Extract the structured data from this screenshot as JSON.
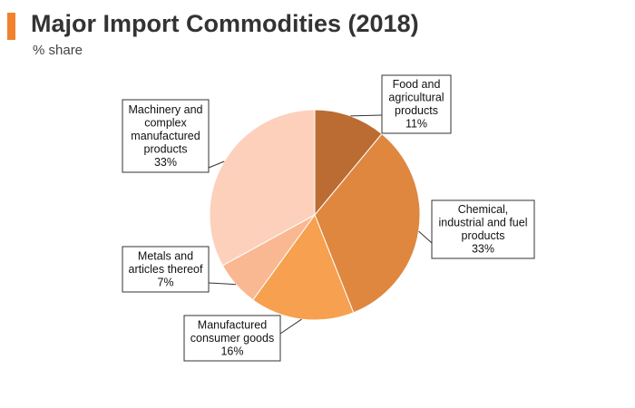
{
  "header": {
    "title": "Major Import Commodities (2018)",
    "subtitle": "% share",
    "accent_color": "#f0822e"
  },
  "chart_data": {
    "type": "pie",
    "title": "Major Import Commodities (2018)",
    "subtitle": "% share",
    "slices": [
      {
        "label_lines": [
          "Food and",
          "agricultural",
          "products",
          "11%"
        ],
        "name": "Food and agricultural products",
        "value": 11,
        "color": "#bb6c33"
      },
      {
        "label_lines": [
          "Chemical,",
          "industrial and fuel",
          "products",
          "33%"
        ],
        "name": "Chemical, industrial and fuel products",
        "value": 33,
        "color": "#df873f"
      },
      {
        "label_lines": [
          "Manufactured",
          "consumer goods",
          "16%"
        ],
        "name": "Manufactured consumer goods",
        "value": 16,
        "color": "#f7a04f"
      },
      {
        "label_lines": [
          "Metals and",
          "articles thereof",
          "7%"
        ],
        "name": "Metals and articles thereof",
        "value": 7,
        "color": "#f9b891"
      },
      {
        "label_lines": [
          "Machinery and",
          "complex",
          "manufactured",
          "products",
          "33%"
        ],
        "name": "Machinery and complex manufactured products",
        "value": 33,
        "color": "#fcd0bb"
      }
    ]
  }
}
